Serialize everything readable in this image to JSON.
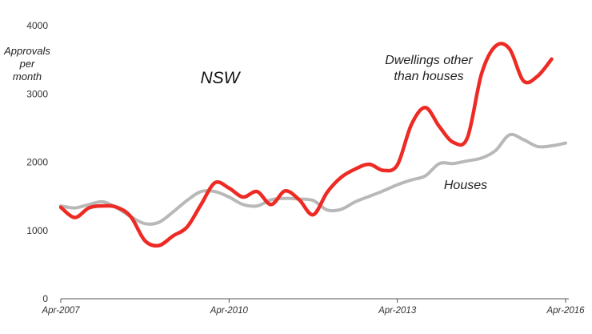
{
  "chart_data": {
    "type": "line",
    "region_label": "NSW",
    "ylabel_lines": [
      "Approvals",
      "per",
      "month"
    ],
    "ylim": [
      0,
      4000
    ],
    "yticks": [
      0,
      1000,
      2000,
      3000,
      4000
    ],
    "xlim": [
      "2007-04",
      "2016-04"
    ],
    "xticks": [
      {
        "date": "2007-04",
        "label": "Apr-2007"
      },
      {
        "date": "2010-04",
        "label": "Apr-2010"
      },
      {
        "date": "2013-04",
        "label": "Apr-2013"
      },
      {
        "date": "2016-04",
        "label": "Apr-2016"
      }
    ],
    "grid": false,
    "series": [
      {
        "name": "Houses",
        "label_lines": [
          "Houses"
        ],
        "color": "#b8b8b8",
        "points": [
          [
            "2007-04",
            1360
          ],
          [
            "2007-07",
            1330
          ],
          [
            "2007-10",
            1380
          ],
          [
            "2008-01",
            1420
          ],
          [
            "2008-04",
            1330
          ],
          [
            "2008-07",
            1200
          ],
          [
            "2008-10",
            1100
          ],
          [
            "2009-01",
            1120
          ],
          [
            "2009-04",
            1270
          ],
          [
            "2009-07",
            1440
          ],
          [
            "2009-10",
            1570
          ],
          [
            "2010-01",
            1570
          ],
          [
            "2010-04",
            1490
          ],
          [
            "2010-07",
            1380
          ],
          [
            "2010-10",
            1360
          ],
          [
            "2011-01",
            1450
          ],
          [
            "2011-04",
            1470
          ],
          [
            "2011-07",
            1460
          ],
          [
            "2011-10",
            1440
          ],
          [
            "2012-01",
            1300
          ],
          [
            "2012-04",
            1310
          ],
          [
            "2012-07",
            1420
          ],
          [
            "2012-10",
            1500
          ],
          [
            "2013-01",
            1580
          ],
          [
            "2013-04",
            1670
          ],
          [
            "2013-07",
            1740
          ],
          [
            "2013-10",
            1800
          ],
          [
            "2014-01",
            1980
          ],
          [
            "2014-04",
            1980
          ],
          [
            "2014-07",
            2020
          ],
          [
            "2014-10",
            2060
          ],
          [
            "2015-01",
            2170
          ],
          [
            "2015-04",
            2400
          ],
          [
            "2015-07",
            2330
          ],
          [
            "2015-10",
            2230
          ],
          [
            "2016-01",
            2240
          ],
          [
            "2016-04",
            2280
          ]
        ]
      },
      {
        "name": "Dwellings other than houses",
        "label_lines": [
          "Dwellings other",
          "than houses"
        ],
        "color": "#ee2a24",
        "points": [
          [
            "2007-04",
            1340
          ],
          [
            "2007-07",
            1190
          ],
          [
            "2007-10",
            1330
          ],
          [
            "2008-01",
            1360
          ],
          [
            "2008-04",
            1340
          ],
          [
            "2008-07",
            1200
          ],
          [
            "2008-10",
            850
          ],
          [
            "2009-01",
            780
          ],
          [
            "2009-04",
            920
          ],
          [
            "2009-07",
            1050
          ],
          [
            "2009-10",
            1380
          ],
          [
            "2010-01",
            1700
          ],
          [
            "2010-04",
            1620
          ],
          [
            "2010-07",
            1490
          ],
          [
            "2010-10",
            1570
          ],
          [
            "2011-01",
            1380
          ],
          [
            "2011-04",
            1580
          ],
          [
            "2011-07",
            1450
          ],
          [
            "2011-10",
            1230
          ],
          [
            "2012-01",
            1560
          ],
          [
            "2012-04",
            1780
          ],
          [
            "2012-07",
            1900
          ],
          [
            "2012-10",
            1970
          ],
          [
            "2013-01",
            1880
          ],
          [
            "2013-04",
            1960
          ],
          [
            "2013-07",
            2550
          ],
          [
            "2013-10",
            2800
          ],
          [
            "2014-01",
            2520
          ],
          [
            "2014-04",
            2290
          ],
          [
            "2014-07",
            2360
          ],
          [
            "2014-10",
            3290
          ],
          [
            "2015-01",
            3700
          ],
          [
            "2015-04",
            3660
          ],
          [
            "2015-07",
            3190
          ],
          [
            "2015-10",
            3260
          ],
          [
            "2016-01",
            3510
          ]
        ]
      }
    ]
  }
}
